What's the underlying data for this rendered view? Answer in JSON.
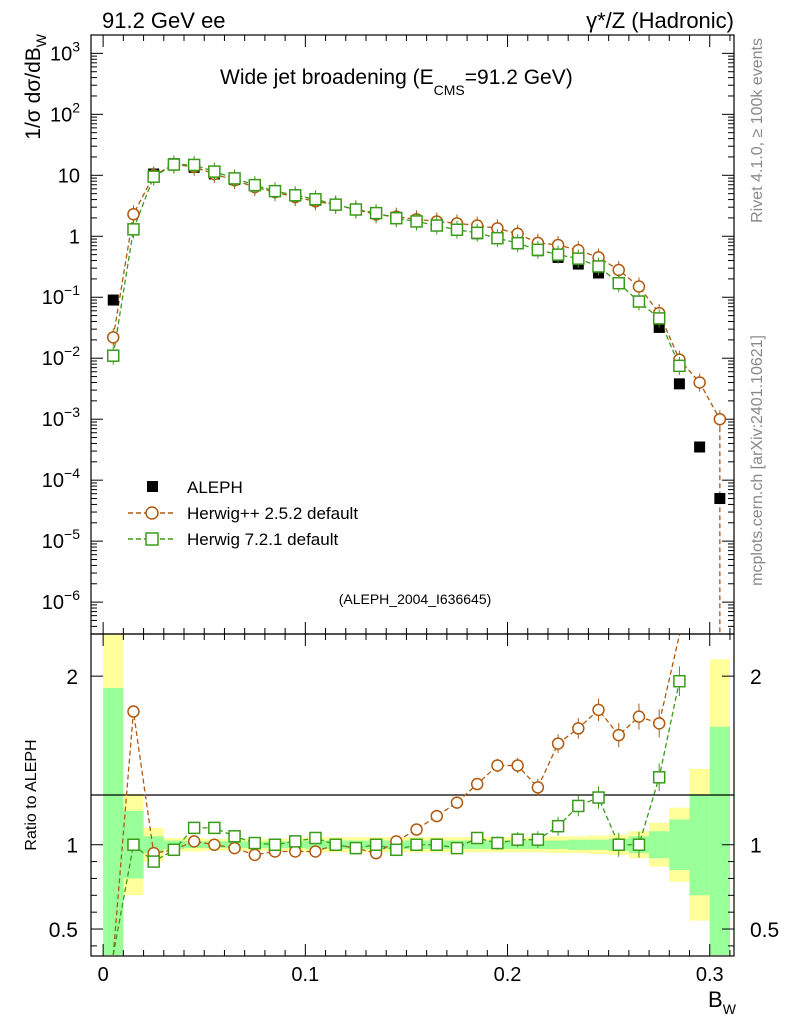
{
  "header": {
    "left": "91.2 GeV ee",
    "right": "γ*/Z (Hadronic)"
  },
  "side_labels": {
    "rivet": "Rivet 4.1.0, ≥ 100k events",
    "mcplots": "mcplots.cern.ch [arXiv:2401.10621]"
  },
  "chart_data": [
    {
      "type": "scatter",
      "id": "main",
      "title_pre": "Wide jet broadening (E",
      "title_sub": "CMS",
      "title_post": "=91.2 GeV)",
      "ylabel_pre": "1/σ  dσ/dB",
      "ylabel_sub": "W",
      "xlabel": "B",
      "xlabel_sub": "W",
      "yscale": "log",
      "ylim": [
        3e-07,
        2000
      ],
      "xlim": [
        -0.006,
        0.312
      ],
      "ytick_labels": [
        {
          "v": 1000,
          "base": "10",
          "exp": "3"
        },
        {
          "v": 100,
          "base": "10",
          "exp": "2"
        },
        {
          "v": 10,
          "base": "10",
          "exp": ""
        },
        {
          "v": 1,
          "base": "1",
          "exp": ""
        },
        {
          "v": 0.1,
          "base": "10",
          "exp": "−1"
        },
        {
          "v": 0.01,
          "base": "10",
          "exp": "−2"
        },
        {
          "v": 0.001,
          "base": "10",
          "exp": "−3"
        },
        {
          "v": 0.0001,
          "base": "10",
          "exp": "−4"
        },
        {
          "v": 1e-05,
          "base": "10",
          "exp": "−5"
        },
        {
          "v": 1e-06,
          "base": "10",
          "exp": "−6"
        }
      ],
      "watermark": "(ALEPH_2004_I636645)",
      "legend": [
        "ALEPH",
        "Herwig++ 2.5.2 default",
        "Herwig 7.2.1 default"
      ],
      "x": [
        0.005,
        0.015,
        0.025,
        0.035,
        0.045,
        0.055,
        0.065,
        0.075,
        0.085,
        0.095,
        0.105,
        0.115,
        0.125,
        0.135,
        0.145,
        0.155,
        0.165,
        0.175,
        0.185,
        0.195,
        0.205,
        0.215,
        0.225,
        0.235,
        0.245,
        0.255,
        0.265,
        0.275,
        0.285,
        0.295,
        0.305
      ],
      "series": [
        {
          "name": "ALEPH",
          "values": [
            0.09,
            1.3,
            10.5,
            15.5,
            13.5,
            10.5,
            8.5,
            6.8,
            5.5,
            4.6,
            3.9,
            3.3,
            2.8,
            2.4,
            2.05,
            1.75,
            1.5,
            1.3,
            1.1,
            0.92,
            0.75,
            0.58,
            0.45,
            0.35,
            0.25,
            0.17,
            0.085,
            0.032,
            0.0038,
            0.00035,
            5e-05
          ]
        },
        {
          "name": "Herwig++ 2.5.2 default",
          "values": [
            0.022,
            2.3,
            10.0,
            15.0,
            13.8,
            10.5,
            8.3,
            6.4,
            5.3,
            4.4,
            3.75,
            3.3,
            2.75,
            2.28,
            2.1,
            1.9,
            1.75,
            1.63,
            1.5,
            1.35,
            1.1,
            0.78,
            0.72,
            0.59,
            0.45,
            0.28,
            0.15,
            0.055,
            0.0095,
            0.004,
            0.001
          ]
        },
        {
          "name": "Herwig 7.2.1 default",
          "values": [
            0.011,
            1.3,
            9.5,
            15.0,
            14.8,
            11.5,
            8.9,
            6.9,
            5.5,
            4.7,
            4.05,
            3.3,
            2.75,
            2.4,
            1.98,
            1.75,
            1.5,
            1.28,
            1.14,
            0.93,
            0.77,
            0.6,
            0.5,
            0.43,
            0.32,
            0.17,
            0.085,
            0.045,
            0.0075
          ]
        }
      ]
    },
    {
      "type": "line",
      "id": "ratio",
      "ylabel": "Ratio to ALEPH",
      "ylim": [
        0.34,
        2.25
      ],
      "yticks": [
        0.5,
        1,
        2
      ],
      "ytick_labels": [
        "0.5",
        "1",
        "2"
      ],
      "xticks": [
        0,
        0.1,
        0.2,
        0.3
      ],
      "xtick_labels": [
        "0",
        "0.1",
        "0.2",
        "0.3"
      ],
      "band_edges": [
        0.0,
        0.01,
        0.02,
        0.03,
        0.04,
        0.05,
        0.06,
        0.07,
        0.08,
        0.09,
        0.1,
        0.11,
        0.12,
        0.13,
        0.14,
        0.15,
        0.16,
        0.17,
        0.18,
        0.19,
        0.2,
        0.21,
        0.22,
        0.23,
        0.24,
        0.25,
        0.26,
        0.27,
        0.28,
        0.29,
        0.3,
        0.31
      ],
      "band_inner": [
        0.93,
        0.2,
        0.05,
        0.025,
        0.02,
        0.02,
        0.02,
        0.02,
        0.02,
        0.02,
        0.025,
        0.025,
        0.025,
        0.025,
        0.025,
        0.025,
        0.025,
        0.025,
        0.025,
        0.025,
        0.025,
        0.025,
        0.025,
        0.03,
        0.03,
        0.035,
        0.05,
        0.08,
        0.15,
        0.3,
        0.7
      ],
      "band_outer": [
        1.3,
        0.3,
        0.1,
        0.04,
        0.04,
        0.035,
        0.035,
        0.035,
        0.035,
        0.04,
        0.045,
        0.045,
        0.045,
        0.045,
        0.045,
        0.045,
        0.045,
        0.045,
        0.045,
        0.045,
        0.045,
        0.045,
        0.05,
        0.05,
        0.055,
        0.06,
        0.08,
        0.13,
        0.22,
        0.45,
        1.1
      ],
      "series": [
        {
          "name": "Herwig++ 2.5.2 default",
          "values": [
            0.24,
            1.79,
            0.95,
            0.97,
            1.02,
            1.0,
            0.98,
            0.94,
            0.96,
            0.96,
            0.96,
            1.0,
            0.98,
            0.95,
            1.02,
            1.09,
            1.17,
            1.25,
            1.36,
            1.47,
            1.47,
            1.34,
            1.6,
            1.69,
            1.8,
            1.65,
            1.76,
            1.72,
            2.5
          ]
        },
        {
          "name": "Herwig 7.2.1 default",
          "values": [
            0.12,
            1.0,
            0.9,
            0.97,
            1.1,
            1.1,
            1.05,
            1.01,
            1.0,
            1.02,
            1.04,
            1.0,
            0.98,
            1.0,
            0.97,
            1.0,
            1.0,
            0.98,
            1.04,
            1.01,
            1.03,
            1.03,
            1.11,
            1.23,
            1.28,
            1.0,
            1.0,
            1.4,
            1.97
          ]
        }
      ]
    }
  ]
}
